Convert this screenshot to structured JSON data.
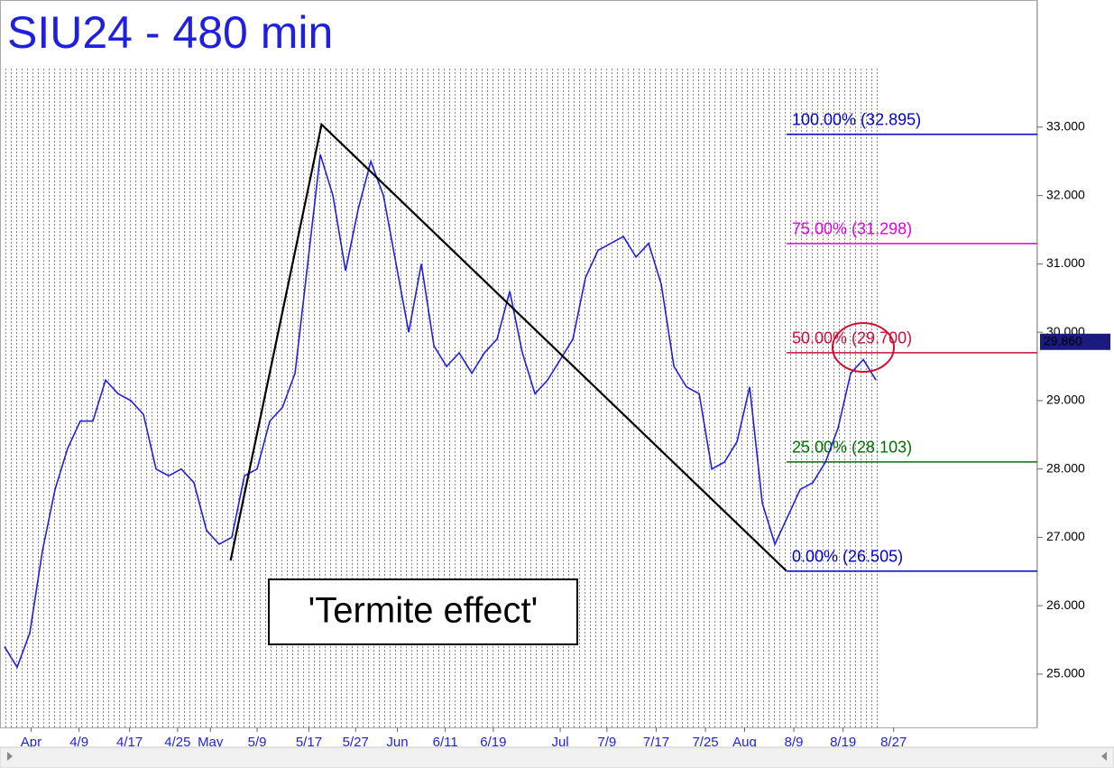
{
  "chart_data": {
    "type": "line",
    "title": "SIU24 - 480 min",
    "series": [
      {
        "color": "#1f1fe0",
        "values": [
          25.4,
          25.1,
          25.6,
          26.8,
          27.7,
          28.3,
          28.7,
          28.7,
          29.3,
          29.1,
          29.0,
          28.8,
          28.0,
          27.9,
          28.0,
          27.8,
          27.1,
          26.9,
          27.0,
          27.9,
          28.0,
          28.7,
          28.9,
          29.4,
          31.0,
          32.6,
          32.0,
          30.9,
          31.8,
          32.5,
          32.0,
          31.0,
          30.0,
          31.0,
          29.8,
          29.5,
          29.7,
          29.4,
          29.7,
          29.9,
          30.6,
          29.7,
          29.1,
          29.3,
          29.6,
          29.9,
          30.8,
          31.2,
          31.3,
          31.4,
          31.1,
          31.3,
          30.7,
          29.5,
          29.2,
          29.1,
          28.0,
          28.1,
          28.4,
          29.2,
          27.5,
          26.9,
          27.3,
          27.7,
          27.8,
          28.1,
          28.6,
          29.4,
          29.6,
          29.3
        ]
      }
    ],
    "xlim": [
      -0.36,
      81.78
    ],
    "xticks": [
      {
        "value": 2.1,
        "label": "Apr"
      },
      {
        "value": 5.9,
        "label": "4/9"
      },
      {
        "value": 9.9,
        "label": "4/17"
      },
      {
        "value": 13.7,
        "label": "4/25"
      },
      {
        "value": 16.3,
        "label": "May"
      },
      {
        "value": 20.0,
        "label": "5/9"
      },
      {
        "value": 24.1,
        "label": "5/17"
      },
      {
        "value": 27.8,
        "label": "5/27"
      },
      {
        "value": 31.1,
        "label": "Jun"
      },
      {
        "value": 34.9,
        "label": "6/11"
      },
      {
        "value": 38.7,
        "label": "6/19"
      },
      {
        "value": 44.0,
        "label": "Jul"
      },
      {
        "value": 47.7,
        "label": "7/9"
      },
      {
        "value": 51.6,
        "label": "7/17"
      },
      {
        "value": 55.5,
        "label": "7/25"
      },
      {
        "value": 58.6,
        "label": "Aug"
      },
      {
        "value": 62.5,
        "label": "8/9"
      },
      {
        "value": 66.4,
        "label": "8/19"
      },
      {
        "value": 70.4,
        "label": "8/27"
      }
    ],
    "ylim": [
      24.22,
      34.86
    ],
    "yticks": [
      {
        "value": 25,
        "label": "25.000"
      },
      {
        "value": 26,
        "label": "26.000"
      },
      {
        "value": 27,
        "label": "27.000"
      },
      {
        "value": 28,
        "label": "28.000"
      },
      {
        "value": 29,
        "label": "29.000"
      },
      {
        "value": 30,
        "label": "30.000"
      },
      {
        "value": 31,
        "label": "31.000"
      },
      {
        "value": 32,
        "label": "32.000"
      },
      {
        "value": 33,
        "label": "33.000"
      }
    ],
    "levels": [
      {
        "label": "100.00% (32.895)",
        "value": 32.895,
        "color": "#0000cc"
      },
      {
        "label": "75.00% (31.298)",
        "value": 31.298,
        "color": "#e000e0"
      },
      {
        "label": "50.00% (29.700)",
        "value": 29.7,
        "color": "#c8103c"
      },
      {
        "label": "25.00% (28.103)",
        "value": 28.103,
        "color": "#007000"
      },
      {
        "label": "0.00% (26.505)",
        "value": 26.505,
        "color": "#0000cc"
      }
    ],
    "trendline": {
      "x": [
        17.9,
        25.1,
        61.9
      ],
      "values": [
        26.66,
        33.04,
        26.51
      ]
    },
    "last_price": {
      "value": 29.86,
      "label": "29.860"
    },
    "annotation": "'Termite effect'"
  }
}
